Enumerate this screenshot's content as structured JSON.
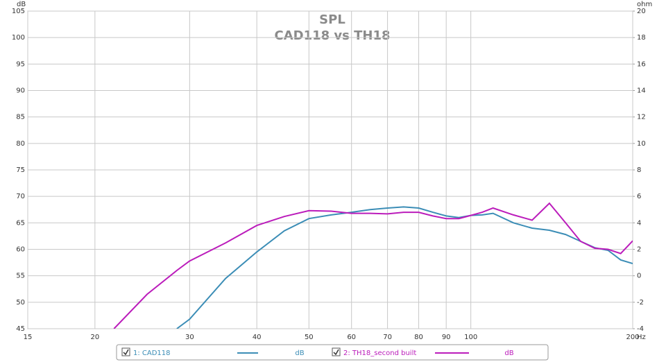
{
  "chart_data": {
    "type": "line",
    "title": "SPL",
    "subtitle": "CAD118 vs TH18",
    "y_label": "dB",
    "y2_label": "ohm",
    "x_unit": "Hz",
    "log_x": true,
    "grid": true,
    "x": [
      21.7,
      25,
      28.4,
      30,
      35,
      40,
      45,
      50,
      55,
      60,
      65,
      70,
      75,
      80,
      85,
      90,
      95,
      100,
      105,
      110,
      120,
      130,
      140,
      150,
      160,
      170,
      180,
      190,
      200
    ],
    "xlim": [
      15,
      200
    ],
    "xticks": [
      15,
      20,
      30,
      40,
      50,
      60,
      70,
      80,
      90,
      100,
      200
    ],
    "ylim": [
      45,
      105
    ],
    "yticks": [
      45,
      50,
      55,
      60,
      65,
      70,
      75,
      80,
      85,
      90,
      95,
      100,
      105
    ],
    "y2lim": [
      -4,
      20
    ],
    "y2ticks": [
      -4,
      -2,
      0,
      2,
      4,
      6,
      8,
      10,
      12,
      14,
      16,
      18,
      20
    ],
    "series": [
      {
        "name": "1: CAD118",
        "unit": "dB",
        "color": "#3b8db6",
        "values": [
          null,
          null,
          45,
          46.8,
          54.5,
          59.5,
          63.5,
          65.8,
          66.5,
          67,
          67.5,
          67.8,
          68,
          67.8,
          67,
          66.3,
          66,
          66.4,
          66.5,
          66.8,
          65,
          64,
          63.6,
          62.8,
          61.5,
          60.3,
          59.8,
          58,
          57.3
        ]
      },
      {
        "name": "2: TH18_second built",
        "unit": "dB",
        "color": "#bb1cbb",
        "values": [
          45,
          51.5,
          56,
          57.8,
          61.2,
          64.5,
          66.2,
          67.3,
          67.2,
          66.8,
          66.8,
          66.7,
          67,
          67,
          66.3,
          65.8,
          65.8,
          66.4,
          67,
          67.8,
          66.5,
          65.5,
          68.7,
          65,
          61.5,
          60.2,
          60,
          59.2,
          61.6
        ]
      }
    ]
  }
}
